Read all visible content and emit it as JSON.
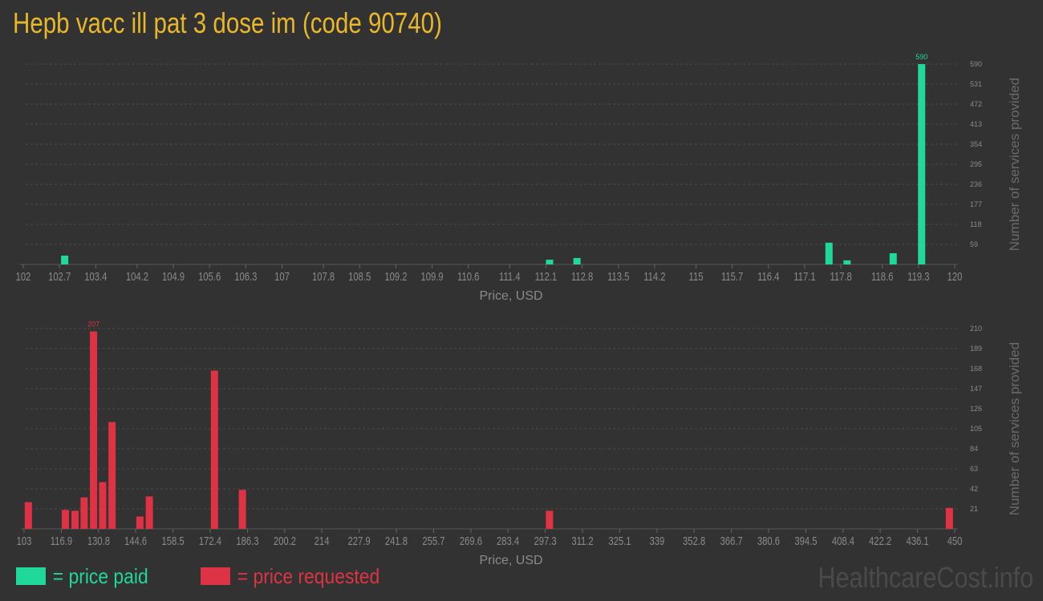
{
  "title": "Hepb vacc ill pat 3 dose im (code 90740)",
  "colors": {
    "paid": "#1fd89a",
    "requested": "#dd3344",
    "title": "#e8b82a"
  },
  "legend": {
    "paid": "= price paid",
    "requested": "= price requested"
  },
  "watermark": "HealthcareCost.info",
  "chart_data": [
    {
      "type": "bar",
      "series_key": "paid",
      "xlabel": "Price, USD",
      "ylabel": "Number of services provided",
      "xlim": [
        102,
        120
      ],
      "ylim": [
        0,
        590
      ],
      "grid": true,
      "x_ticks": [
        "102",
        "102.7",
        "103.4",
        "104.2",
        "104.9",
        "105.6",
        "106.3",
        "107",
        "107.8",
        "108.5",
        "109.2",
        "109.9",
        "110.6",
        "111.4",
        "112.1",
        "112.8",
        "113.5",
        "114.2",
        "115",
        "115.7",
        "116.4",
        "117.1",
        "117.8",
        "118.6",
        "119.3",
        "120"
      ],
      "y_ticks": [
        "59",
        "118",
        "177",
        "236",
        "295",
        "354",
        "413",
        "472",
        "531",
        "590"
      ],
      "x": [
        102.8,
        112.17,
        112.7,
        117.57,
        117.92,
        118.81,
        119.36
      ],
      "values": [
        26,
        14,
        19,
        64,
        12,
        33,
        590
      ],
      "max_label": "590"
    },
    {
      "type": "bar",
      "series_key": "requested",
      "xlabel": "Price, USD",
      "ylabel": "Number of services provided",
      "xlim": [
        103,
        450
      ],
      "ylim": [
        0,
        210
      ],
      "grid": true,
      "x_ticks": [
        "103",
        "116.9",
        "130.8",
        "144.6",
        "158.5",
        "172.4",
        "186.3",
        "200.2",
        "214",
        "227.9",
        "241.8",
        "255.7",
        "269.6",
        "283.4",
        "297.3",
        "311.2",
        "325.1",
        "339",
        "352.8",
        "366.7",
        "380.6",
        "394.5",
        "408.4",
        "422.2",
        "436.1",
        "450"
      ],
      "y_ticks": [
        "21",
        "42",
        "63",
        "84",
        "105",
        "126",
        "147",
        "168",
        "189",
        "210"
      ],
      "x": [
        104.6,
        118.4,
        122,
        125.4,
        128.9,
        132.3,
        135.8,
        146.2,
        149.7,
        174,
        184.4,
        298.9,
        448
      ],
      "values": [
        28,
        20,
        19,
        33,
        207,
        49,
        112,
        13,
        34,
        166,
        41,
        19,
        22
      ],
      "max_label": "207"
    }
  ]
}
